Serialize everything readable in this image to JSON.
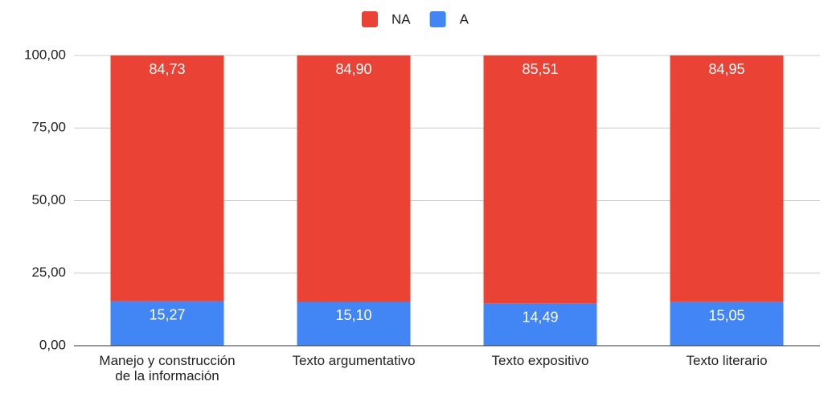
{
  "chart_data": {
    "type": "stacked_bar",
    "categories": [
      "Manejo y construcción de la información",
      "Texto argumentativo",
      "Texto expositivo",
      "Texto literario"
    ],
    "series": [
      {
        "name": "NA",
        "color": "#ea4335",
        "values": [
          84.73,
          84.9,
          85.51,
          84.95
        ],
        "value_labels": [
          "84,73",
          "84,90",
          "85,51",
          "84,95"
        ]
      },
      {
        "name": "A",
        "color": "#4285f4",
        "values": [
          15.27,
          15.1,
          14.49,
          15.05
        ],
        "value_labels": [
          "15,27",
          "15,10",
          "14,49",
          "15,05"
        ]
      }
    ],
    "ylim": [
      0,
      100
    ],
    "yticks": [
      {
        "value": 0,
        "label": "0,00"
      },
      {
        "value": 25,
        "label": "25,00"
      },
      {
        "value": 50,
        "label": "50,00"
      },
      {
        "value": 75,
        "label": "75,00"
      },
      {
        "value": 100,
        "label": "100,00"
      }
    ],
    "grid": true,
    "legend": "top"
  }
}
